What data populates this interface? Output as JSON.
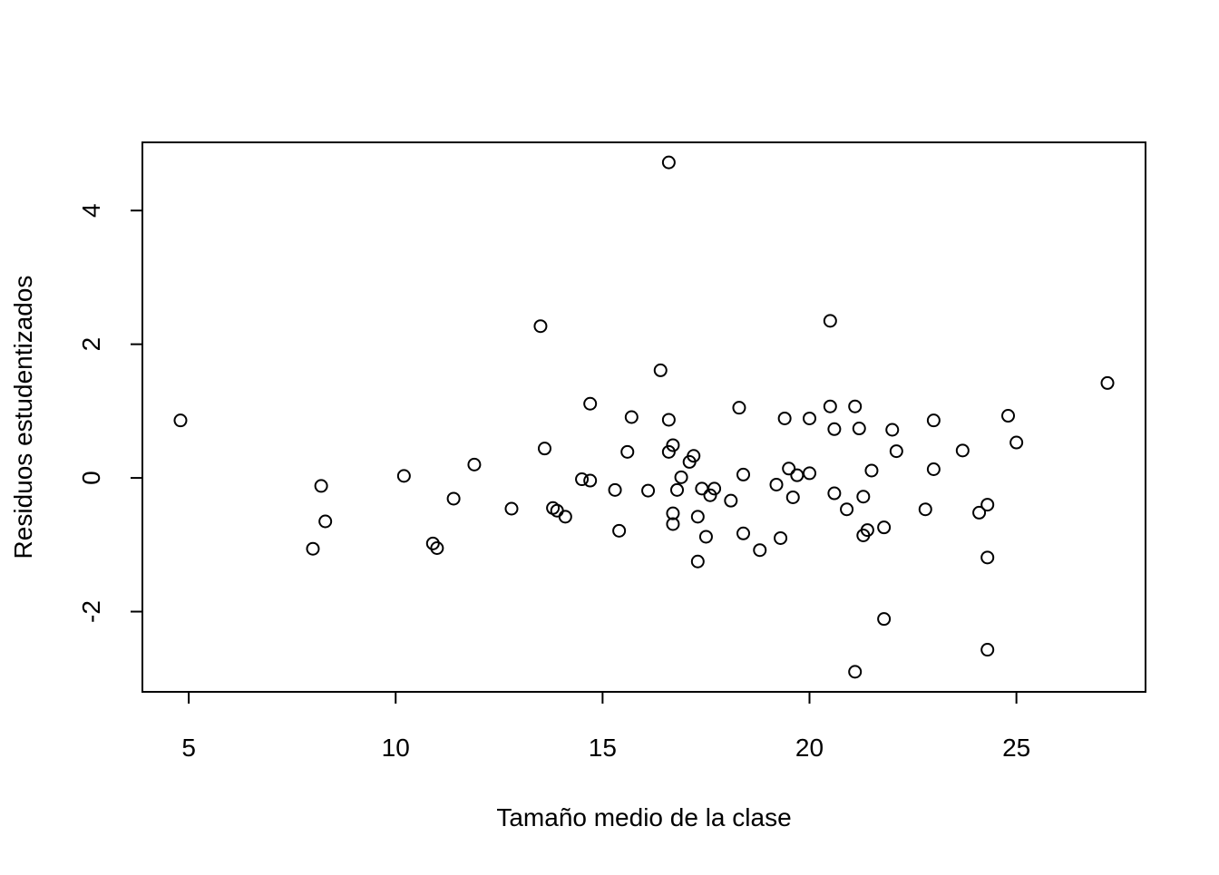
{
  "chart_data": {
    "type": "scatter",
    "title": "",
    "xlabel": "Tamaño medio de la clase",
    "ylabel": "Residuos estudentizados",
    "xlim": [
      3.88,
      28.12
    ],
    "ylim": [
      -3.2,
      5.02
    ],
    "x_ticks": [
      5,
      10,
      15,
      20,
      25
    ],
    "y_ticks": [
      -2,
      0,
      2,
      4
    ],
    "x_tick_labels": [
      "5",
      "10",
      "15",
      "20",
      "25"
    ],
    "y_tick_labels": [
      "-2",
      "0",
      "2",
      "4"
    ],
    "grid": false,
    "legend": "none",
    "marker": "open-circle",
    "points": [
      [
        4.8,
        0.86
      ],
      [
        8.0,
        -1.06
      ],
      [
        8.2,
        -0.12
      ],
      [
        8.3,
        -0.65
      ],
      [
        10.2,
        0.03
      ],
      [
        10.9,
        -0.98
      ],
      [
        11.0,
        -1.05
      ],
      [
        11.4,
        -0.31
      ],
      [
        11.9,
        0.2
      ],
      [
        12.8,
        -0.46
      ],
      [
        13.5,
        2.27
      ],
      [
        13.6,
        0.44
      ],
      [
        13.8,
        -0.45
      ],
      [
        13.9,
        -0.49
      ],
      [
        14.1,
        -0.58
      ],
      [
        14.5,
        -0.02
      ],
      [
        14.7,
        1.11
      ],
      [
        14.7,
        -0.04
      ],
      [
        15.3,
        -0.18
      ],
      [
        15.4,
        -0.79
      ],
      [
        15.6,
        0.39
      ],
      [
        15.7,
        0.91
      ],
      [
        16.1,
        -0.19
      ],
      [
        16.4,
        1.61
      ],
      [
        16.6,
        4.72
      ],
      [
        16.6,
        0.87
      ],
      [
        16.6,
        0.39
      ],
      [
        16.7,
        0.49
      ],
      [
        16.7,
        -0.53
      ],
      [
        16.7,
        -0.69
      ],
      [
        16.8,
        -0.18
      ],
      [
        16.9,
        0.01
      ],
      [
        17.1,
        0.24
      ],
      [
        17.2,
        0.33
      ],
      [
        17.3,
        -0.58
      ],
      [
        17.3,
        -1.25
      ],
      [
        17.4,
        -0.16
      ],
      [
        17.5,
        -0.88
      ],
      [
        17.6,
        -0.26
      ],
      [
        17.7,
        -0.16
      ],
      [
        18.1,
        -0.34
      ],
      [
        18.3,
        1.05
      ],
      [
        18.4,
        0.05
      ],
      [
        18.4,
        -0.83
      ],
      [
        18.8,
        -1.08
      ],
      [
        19.2,
        -0.1
      ],
      [
        19.3,
        -0.9
      ],
      [
        19.4,
        0.89
      ],
      [
        19.5,
        0.14
      ],
      [
        19.6,
        -0.29
      ],
      [
        19.7,
        0.04
      ],
      [
        20.0,
        0.89
      ],
      [
        20.0,
        0.07
      ],
      [
        20.5,
        2.35
      ],
      [
        20.5,
        1.07
      ],
      [
        20.6,
        0.73
      ],
      [
        20.6,
        -0.23
      ],
      [
        20.9,
        -0.47
      ],
      [
        21.1,
        1.07
      ],
      [
        21.1,
        -2.9
      ],
      [
        21.2,
        0.74
      ],
      [
        21.3,
        -0.28
      ],
      [
        21.3,
        -0.86
      ],
      [
        21.4,
        -0.78
      ],
      [
        21.5,
        0.11
      ],
      [
        21.8,
        -0.74
      ],
      [
        21.8,
        -2.11
      ],
      [
        22.0,
        0.72
      ],
      [
        22.1,
        0.4
      ],
      [
        22.8,
        -0.47
      ],
      [
        23.0,
        0.86
      ],
      [
        23.0,
        0.13
      ],
      [
        23.7,
        0.41
      ],
      [
        24.1,
        -0.52
      ],
      [
        24.3,
        -0.4
      ],
      [
        24.3,
        -1.19
      ],
      [
        24.3,
        -2.57
      ],
      [
        24.8,
        0.93
      ],
      [
        25.0,
        0.53
      ],
      [
        27.2,
        1.42
      ]
    ]
  }
}
